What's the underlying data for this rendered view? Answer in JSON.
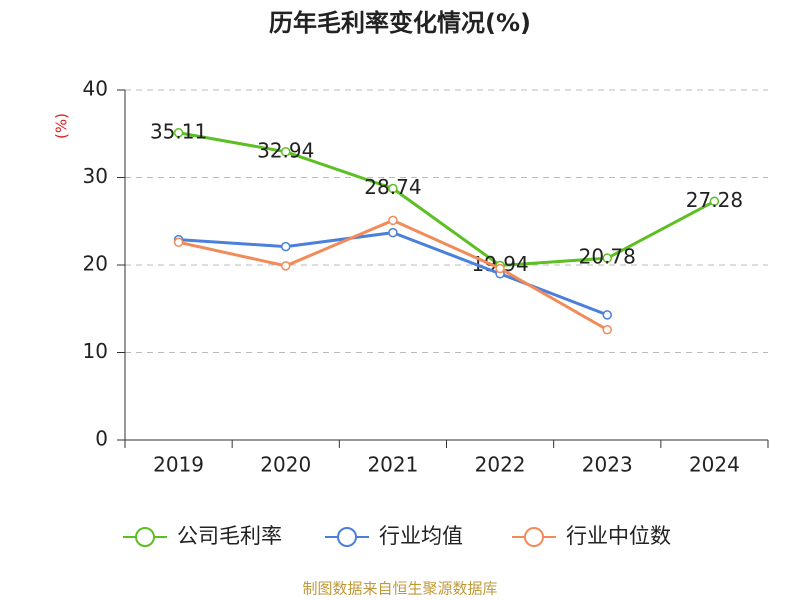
{
  "chart_data": {
    "type": "line",
    "title": "历年毛利率变化情况(%)",
    "y_label": "(%)",
    "categories": [
      "2019",
      "2020",
      "2021",
      "2022",
      "2023",
      "2024"
    ],
    "series": [
      {
        "name": "公司毛利率",
        "color": "#5dbf24",
        "values": [
          35.11,
          32.94,
          28.74,
          19.94,
          20.78,
          27.28
        ],
        "show_labels": true
      },
      {
        "name": "行业均值",
        "color": "#4a7fdc",
        "values": [
          22.9,
          22.1,
          23.7,
          19.0,
          14.3,
          null
        ],
        "show_labels": false
      },
      {
        "name": "行业中位数",
        "color": "#f28b5a",
        "values": [
          22.6,
          19.9,
          25.1,
          19.6,
          12.6,
          null
        ],
        "show_labels": false
      }
    ],
    "ylim": [
      0,
      40
    ],
    "yticks": [
      0,
      10,
      20,
      30,
      40
    ],
    "grid": true,
    "legend": "bottom",
    "source": "制图数据来自恒生聚源数据库"
  }
}
